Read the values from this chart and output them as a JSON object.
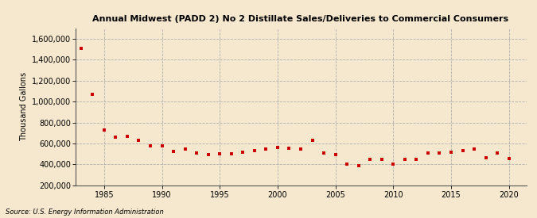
{
  "title": "Annual Midwest (PADD 2) No 2 Distillate Sales/Deliveries to Commercial Consumers",
  "ylabel": "Thousand Gallons",
  "source": "Source: U.S. Energy Information Administration",
  "background_color": "#f5e8ce",
  "marker_color": "#cc0000",
  "grid_color": "#aaaaaa",
  "years": [
    1983,
    1984,
    1985,
    1986,
    1987,
    1988,
    1989,
    1990,
    1991,
    1992,
    1993,
    1994,
    1995,
    1996,
    1997,
    1998,
    1999,
    2000,
    2001,
    2002,
    2003,
    2004,
    2005,
    2006,
    2007,
    2008,
    2009,
    2010,
    2011,
    2012,
    2013,
    2014,
    2015,
    2016,
    2017,
    2018,
    2019,
    2020
  ],
  "values": [
    1510000,
    1070000,
    730000,
    660000,
    670000,
    630000,
    580000,
    575000,
    525000,
    550000,
    510000,
    490000,
    500000,
    500000,
    520000,
    530000,
    545000,
    560000,
    555000,
    545000,
    630000,
    510000,
    490000,
    405000,
    390000,
    450000,
    450000,
    405000,
    445000,
    450000,
    510000,
    510000,
    520000,
    535000,
    550000,
    465000,
    510000,
    455000
  ],
  "xlim": [
    1982.5,
    2021.5
  ],
  "ylim": [
    200000,
    1700000
  ],
  "yticks": [
    200000,
    400000,
    600000,
    800000,
    1000000,
    1200000,
    1400000,
    1600000
  ],
  "xticks": [
    1985,
    1990,
    1995,
    2000,
    2005,
    2010,
    2015,
    2020
  ]
}
